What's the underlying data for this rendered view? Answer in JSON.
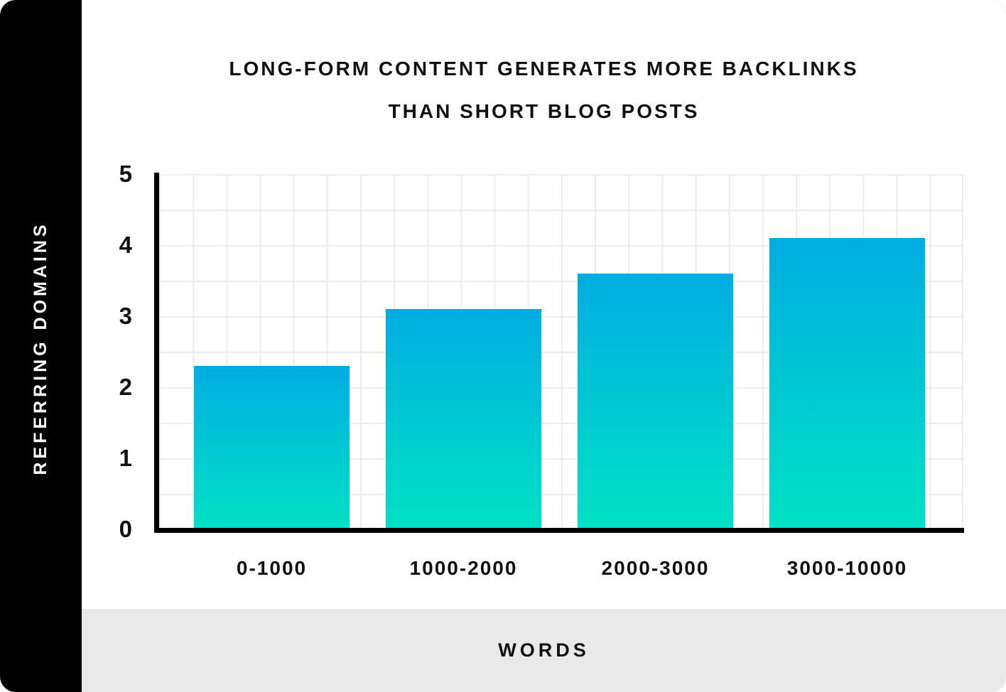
{
  "title": {
    "line1": "LONG-FORM CONTENT GENERATES MORE BACKLINKS",
    "line2": "THAN SHORT BLOG POSTS"
  },
  "y_axis_label": "REFERRING DOMAINS",
  "x_axis_label": "WORDS",
  "chart_data": {
    "type": "bar",
    "title": "LONG-FORM CONTENT GENERATES MORE BACKLINKS THAN SHORT BLOG POSTS",
    "categories": [
      "0-1000",
      "1000-2000",
      "2000-3000",
      "3000-10000"
    ],
    "values": [
      2.3,
      3.1,
      3.6,
      4.1
    ],
    "xlabel": "WORDS",
    "ylabel": "REFERRING DOMAINS",
    "ylim": [
      0,
      5
    ],
    "y_ticks": [
      0,
      1,
      2,
      3,
      4,
      5
    ],
    "grid": true,
    "legend": false,
    "bar_gradient_top": "#00ade2",
    "bar_gradient_bottom": "#00e2c4"
  },
  "colors": {
    "sidebar_bg": "#000000",
    "sidebar_text": "#ffffff",
    "axis": "#000000",
    "grid": "#ececec",
    "footer_bg": "#e9e9e9",
    "text": "#111111",
    "background": "#ffffff"
  }
}
